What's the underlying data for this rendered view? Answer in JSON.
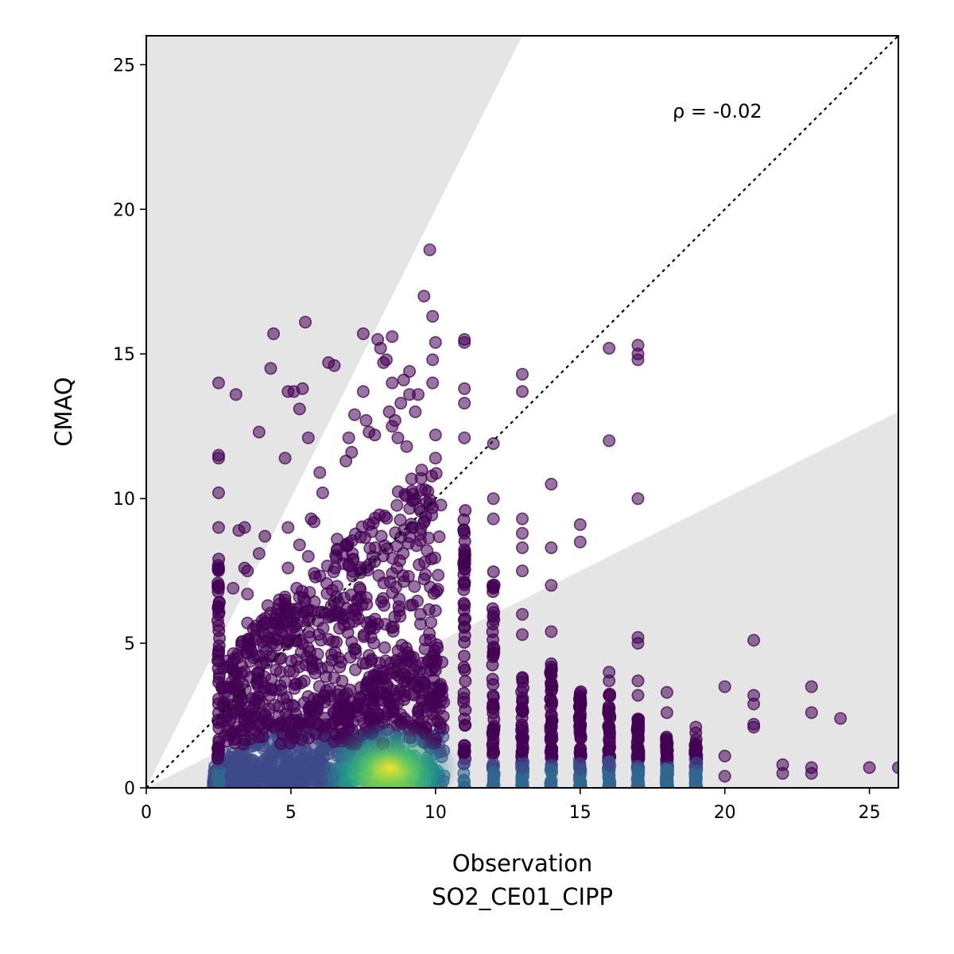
{
  "chart_data": {
    "type": "scatter",
    "xlabel": [
      "Observation",
      "SO2_CE01_CIPP"
    ],
    "ylabel": "CMAQ",
    "xlim": [
      0,
      26
    ],
    "ylim": [
      0,
      26
    ],
    "xticks": [
      "0",
      "5",
      "10",
      "15",
      "20",
      "25"
    ],
    "yticks": [
      "0",
      "5",
      "10",
      "15",
      "20",
      "25"
    ],
    "annotation": "ρ = -0.02",
    "reference_line": "1:1 dashed",
    "shaded_regions": "outside factor-of-2 band (y > 2x and y < 0.5x)",
    "colormap": "viridis (point density)",
    "grid": false,
    "outliers": [
      [
        2.5,
        14.0
      ],
      [
        2.5,
        11.5
      ],
      [
        2.5,
        11.4
      ],
      [
        2.5,
        10.2
      ],
      [
        2.5,
        9.0
      ],
      [
        2.5,
        7.6
      ],
      [
        2.5,
        7.0
      ],
      [
        2.5,
        6.9
      ],
      [
        2.5,
        6.0
      ],
      [
        2.5,
        5.6
      ],
      [
        3.0,
        6.9
      ],
      [
        3.1,
        13.6
      ],
      [
        3.2,
        8.9
      ],
      [
        3.4,
        9.0
      ],
      [
        3.4,
        7.6
      ],
      [
        3.5,
        7.5
      ],
      [
        3.5,
        6.7
      ],
      [
        3.5,
        5.7
      ],
      [
        3.7,
        5.5
      ],
      [
        3.8,
        5.6
      ],
      [
        3.9,
        12.3
      ],
      [
        3.9,
        8.1
      ],
      [
        4.1,
        8.7
      ],
      [
        4.2,
        6.3
      ],
      [
        4.4,
        15.7
      ],
      [
        4.3,
        14.5
      ],
      [
        4.6,
        6.5
      ],
      [
        4.8,
        6.6
      ],
      [
        4.8,
        11.4
      ],
      [
        4.9,
        13.7
      ],
      [
        4.9,
        9.0
      ],
      [
        4.9,
        7.6
      ],
      [
        5.1,
        13.7
      ],
      [
        5.2,
        6.9
      ],
      [
        5.3,
        13.1
      ],
      [
        5.3,
        8.4
      ],
      [
        5.4,
        13.8
      ],
      [
        5.5,
        16.1
      ],
      [
        5.6,
        12.1
      ],
      [
        5.7,
        9.3
      ],
      [
        5.6,
        8.0
      ],
      [
        5.8,
        9.2
      ],
      [
        6.0,
        10.9
      ],
      [
        6.1,
        10.2
      ],
      [
        6.3,
        14.7
      ],
      [
        6.5,
        14.6
      ],
      [
        6.6,
        8.6
      ],
      [
        6.9,
        11.3
      ],
      [
        7.0,
        12.1
      ],
      [
        7.1,
        11.6
      ],
      [
        7.2,
        12.9
      ],
      [
        7.5,
        15.7
      ],
      [
        7.5,
        13.7
      ],
      [
        7.6,
        12.7
      ],
      [
        7.7,
        12.3
      ],
      [
        7.9,
        12.2
      ],
      [
        8.0,
        15.5
      ],
      [
        8.1,
        15.2
      ],
      [
        8.2,
        14.7
      ],
      [
        8.3,
        14.8
      ],
      [
        8.5,
        15.6
      ],
      [
        8.4,
        13.0
      ],
      [
        8.5,
        14.0
      ],
      [
        8.5,
        12.5
      ],
      [
        8.6,
        12.7
      ],
      [
        8.7,
        12.1
      ],
      [
        8.8,
        13.3
      ],
      [
        8.9,
        14.1
      ],
      [
        9.0,
        11.8
      ],
      [
        9.1,
        13.6
      ],
      [
        9.3,
        13.0
      ],
      [
        9.1,
        14.4
      ],
      [
        9.4,
        13.6
      ],
      [
        9.6,
        17.0
      ],
      [
        9.8,
        18.6
      ],
      [
        9.9,
        16.3
      ],
      [
        9.9,
        14.8
      ],
      [
        10.0,
        15.4
      ],
      [
        9.9,
        14.0
      ],
      [
        10.0,
        12.2
      ],
      [
        10.0,
        11.4
      ],
      [
        11.0,
        15.5
      ],
      [
        11.0,
        15.4
      ],
      [
        11.0,
        13.8
      ],
      [
        11.0,
        13.3
      ],
      [
        11.0,
        12.1
      ],
      [
        12.0,
        11.9
      ],
      [
        12.0,
        10.0
      ],
      [
        12.0,
        9.3
      ],
      [
        13.0,
        14.3
      ],
      [
        13.0,
        13.7
      ],
      [
        13.0,
        9.3
      ],
      [
        13.0,
        8.8
      ],
      [
        13.0,
        8.3
      ],
      [
        13.0,
        7.5
      ],
      [
        13.0,
        6.0
      ],
      [
        13.0,
        5.3
      ],
      [
        14.0,
        10.5
      ],
      [
        14.0,
        8.3
      ],
      [
        14.0,
        7.0
      ],
      [
        14.0,
        5.4
      ],
      [
        15.0,
        9.1
      ],
      [
        15.0,
        8.5
      ],
      [
        16.0,
        15.2
      ],
      [
        16.0,
        12.0
      ],
      [
        16.0,
        4.0
      ],
      [
        16.0,
        3.7
      ],
      [
        17.0,
        15.3
      ],
      [
        17.0,
        15.0
      ],
      [
        17.0,
        14.8
      ],
      [
        17.0,
        10.0
      ],
      [
        17.0,
        5.2
      ],
      [
        17.0,
        5.0
      ],
      [
        17.0,
        3.7
      ],
      [
        17.0,
        3.2
      ],
      [
        18.0,
        3.3
      ],
      [
        18.0,
        2.6
      ],
      [
        19.0,
        2.1
      ],
      [
        19.0,
        1.9
      ],
      [
        20.0,
        3.5
      ],
      [
        20.0,
        1.1
      ],
      [
        20.0,
        0.4
      ],
      [
        21.0,
        5.1
      ],
      [
        21.0,
        3.2
      ],
      [
        21.0,
        2.9
      ],
      [
        21.0,
        2.2
      ],
      [
        21.0,
        2.1
      ],
      [
        22.0,
        0.8
      ],
      [
        22.0,
        0.5
      ],
      [
        23.0,
        3.5
      ],
      [
        23.0,
        2.6
      ],
      [
        23.0,
        0.7
      ],
      [
        23.0,
        0.5
      ],
      [
        24.0,
        2.4
      ],
      [
        25.0,
        0.7
      ],
      [
        26.0,
        0.7
      ]
    ]
  }
}
